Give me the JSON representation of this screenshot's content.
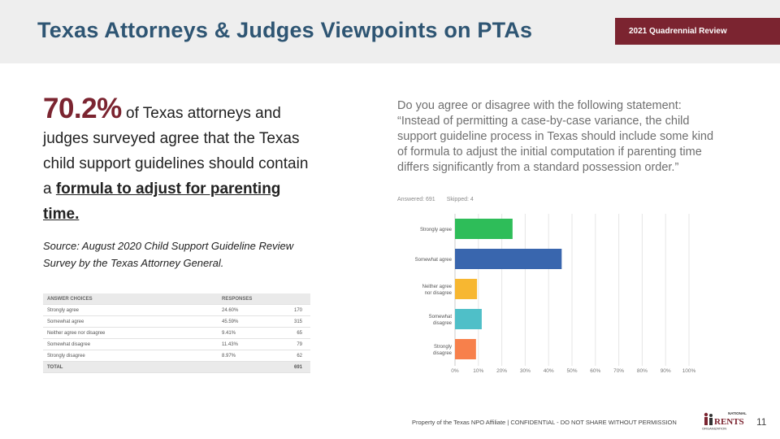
{
  "header": {
    "title": "Texas Attorneys & Judges Viewpoints on PTAs",
    "badge": "2021 Quadrennial Review"
  },
  "stat": {
    "percent": "70.2%",
    "text_before": " of Texas attorneys and judges surveyed agree that the Texas child support guidelines should contain a ",
    "emphasis": "formula to adjust for parenting time."
  },
  "source": "Source: August 2020 Child Support Guideline Review Survey by the Texas Attorney General.",
  "table": {
    "headers": [
      "ANSWER CHOICES",
      "RESPONSES"
    ],
    "rows": [
      {
        "choice": "Strongly agree",
        "pct": "24.60%",
        "count": "170"
      },
      {
        "choice": "Somewhat agree",
        "pct": "45.59%",
        "count": "315"
      },
      {
        "choice": "Neither agree nor disagree",
        "pct": "9.41%",
        "count": "65"
      },
      {
        "choice": "Somewhat disagree",
        "pct": "11.43%",
        "count": "79"
      },
      {
        "choice": "Strongly disagree",
        "pct": "8.97%",
        "count": "62"
      }
    ],
    "total_label": "TOTAL",
    "total_count": "691"
  },
  "survey": {
    "question": "Do you agree or disagree with the following statement: “Instead of permitting a case-by-case variance, the child support guideline process in Texas should include some kind of formula to adjust the initial computation if parenting time differs significantly from a standard possession order.”",
    "answered": "Answered: 691",
    "skipped": "Skipped: 4"
  },
  "chart_data": {
    "type": "bar",
    "orientation": "horizontal",
    "categories": [
      "Strongly agree",
      "Somewhat agree",
      "Neither agree nor disagree",
      "Somewhat disagree",
      "Strongly disagree"
    ],
    "category_lines": [
      [
        "Strongly agree"
      ],
      [
        "Somewhat agree"
      ],
      [
        "Neither agree",
        "nor disagree"
      ],
      [
        "Somewhat",
        "disagree"
      ],
      [
        "Strongly",
        "disagree"
      ]
    ],
    "values": [
      24.6,
      45.59,
      9.41,
      11.43,
      8.97
    ],
    "colors": [
      "#2ebd59",
      "#3966ae",
      "#f7b731",
      "#4fbfc8",
      "#f7804b"
    ],
    "xlim": [
      0,
      100
    ],
    "ticks": [
      0,
      10,
      20,
      30,
      40,
      50,
      60,
      70,
      80,
      90,
      100
    ],
    "tick_labels": [
      "0%",
      "10%",
      "20%",
      "30%",
      "40%",
      "50%",
      "60%",
      "70%",
      "80%",
      "90%",
      "100%"
    ],
    "grid": true
  },
  "footer": {
    "text": "Property of the Texas NPO Affiliate | CONFIDENTIAL - DO NOT SHARE WITHOUT PERMISSION",
    "page_number": "11",
    "logo_text": "NATIONAL PARENTS ORGANIZATION"
  }
}
